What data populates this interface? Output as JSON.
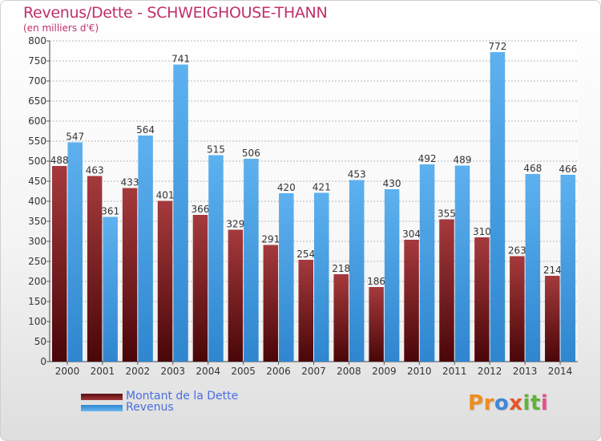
{
  "chart_data": {
    "type": "bar",
    "title": "Revenus/Dette - SCHWEIGHOUSE-THANN",
    "subtitle": "(en milliers d'€)",
    "categories": [
      "2000",
      "2001",
      "2002",
      "2003",
      "2004",
      "2005",
      "2006",
      "2007",
      "2008",
      "2009",
      "2010",
      "2011",
      "2012",
      "2013",
      "2014"
    ],
    "series": [
      {
        "name": "Montant de la Dette",
        "values": [
          488,
          463,
          433,
          401,
          366,
          329,
          291,
          254,
          218,
          186,
          304,
          355,
          310,
          263,
          214
        ],
        "color": "#7a1a1e"
      },
      {
        "name": "Revenus",
        "values": [
          547,
          361,
          564,
          741,
          515,
          506,
          420,
          421,
          453,
          430,
          492,
          489,
          772,
          468,
          466
        ],
        "color": "#4ea3e6"
      }
    ],
    "ylim": [
      0,
      800
    ],
    "yticks": [
      "0",
      "50",
      "100",
      "150",
      "200",
      "250",
      "300",
      "350",
      "400",
      "450",
      "500",
      "550",
      "600",
      "650",
      "700",
      "750",
      "800"
    ],
    "grid": true,
    "legend_position": "bottom-left"
  },
  "logo": {
    "letters": [
      "P",
      "r",
      "o",
      "x",
      "i",
      "t",
      "i"
    ],
    "colors": [
      "#f08c1e",
      "#f08c1e",
      "#3f87d8",
      "#e8542a",
      "#5fb43a",
      "#5fb43a",
      "#e84f8c"
    ]
  }
}
